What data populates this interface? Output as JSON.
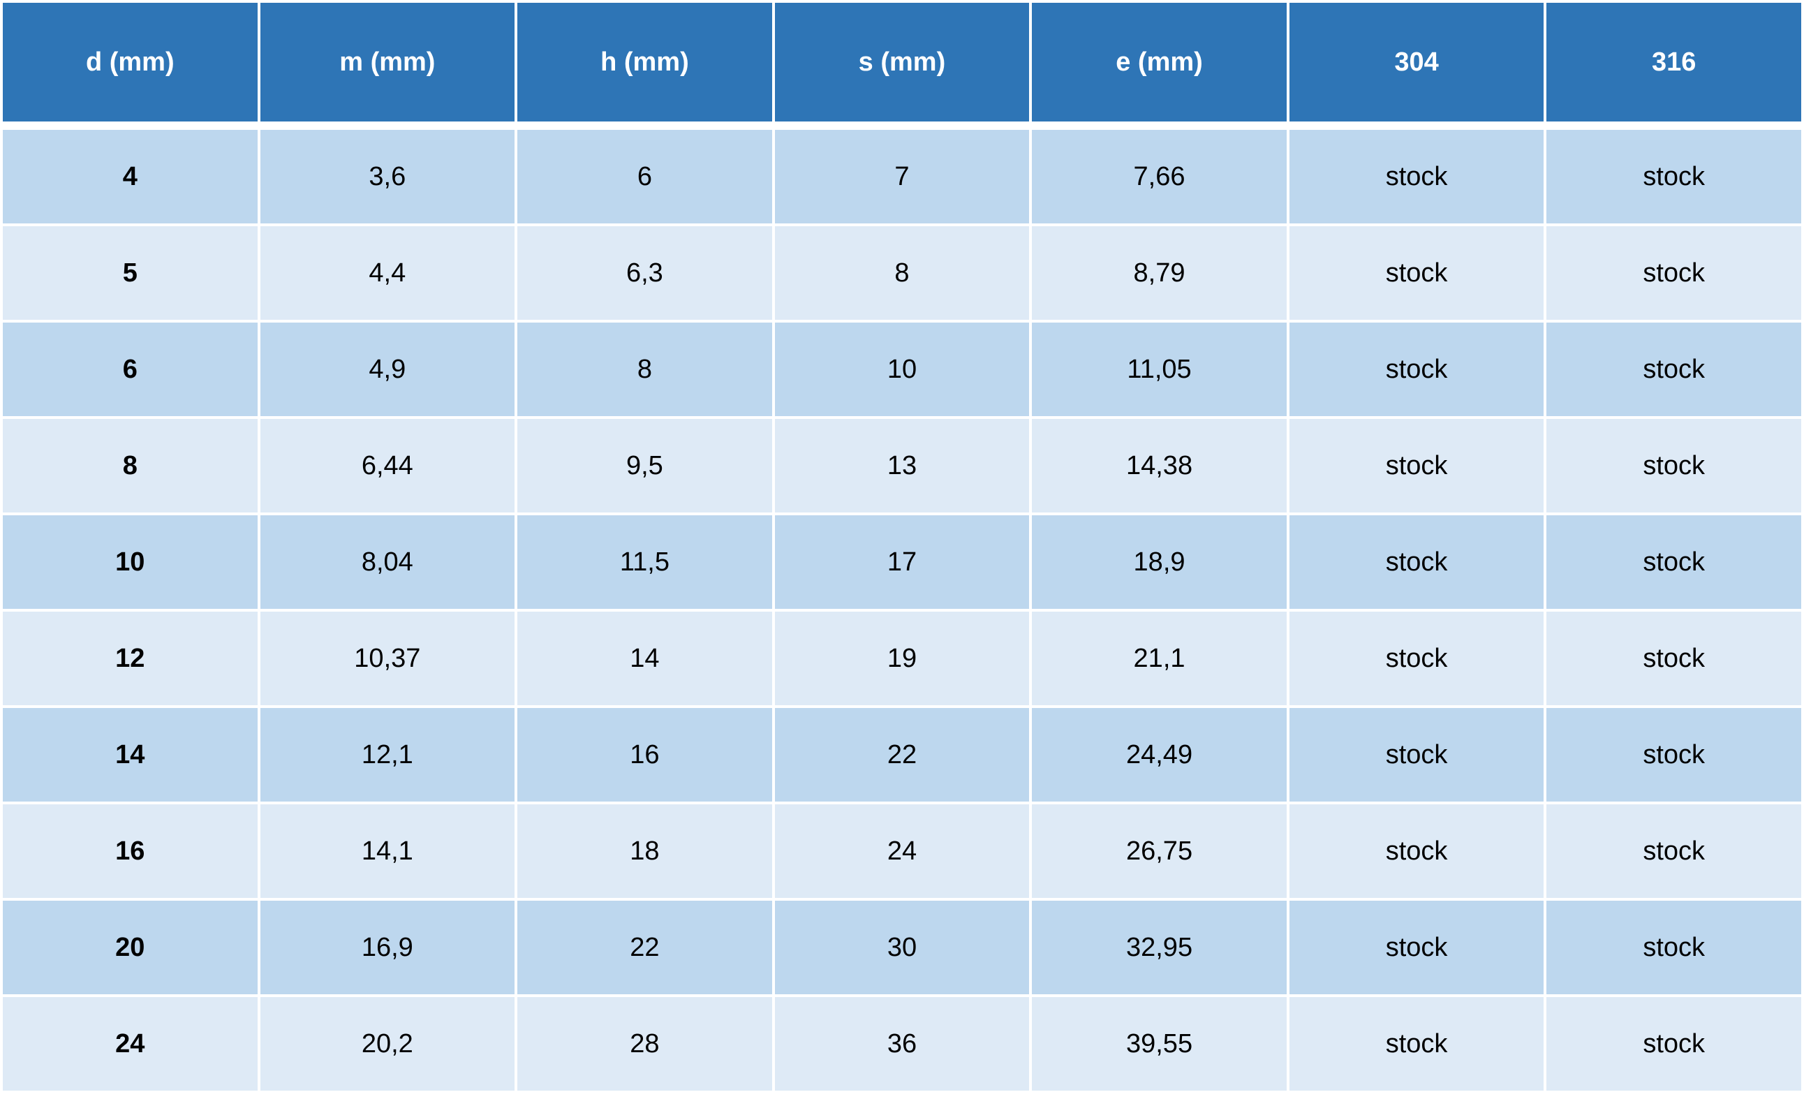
{
  "table": {
    "header": [
      "d (mm)",
      "m (mm)",
      "h (mm)",
      "s (mm)",
      "e (mm)",
      "304",
      "316"
    ],
    "rows": [
      [
        "4",
        "3,6",
        "6",
        "7",
        "7,66",
        "stock",
        "stock"
      ],
      [
        "5",
        "4,4",
        "6,3",
        "8",
        "8,79",
        "stock",
        "stock"
      ],
      [
        "6",
        "4,9",
        "8",
        "10",
        "11,05",
        "stock",
        "stock"
      ],
      [
        "8",
        "6,44",
        "9,5",
        "13",
        "14,38",
        "stock",
        "stock"
      ],
      [
        "10",
        "8,04",
        "11,5",
        "17",
        "18,9",
        "stock",
        "stock"
      ],
      [
        "12",
        "10,37",
        "14",
        "19",
        "21,1",
        "stock",
        "stock"
      ],
      [
        "14",
        "12,1",
        "16",
        "22",
        "24,49",
        "stock",
        "stock"
      ],
      [
        "16",
        "14,1",
        "18",
        "24",
        "26,75",
        "stock",
        "stock"
      ],
      [
        "20",
        "16,9",
        "22",
        "30",
        "32,95",
        "stock",
        "stock"
      ],
      [
        "24",
        "20,2",
        "28",
        "36",
        "39,55",
        "stock",
        "stock"
      ]
    ]
  }
}
